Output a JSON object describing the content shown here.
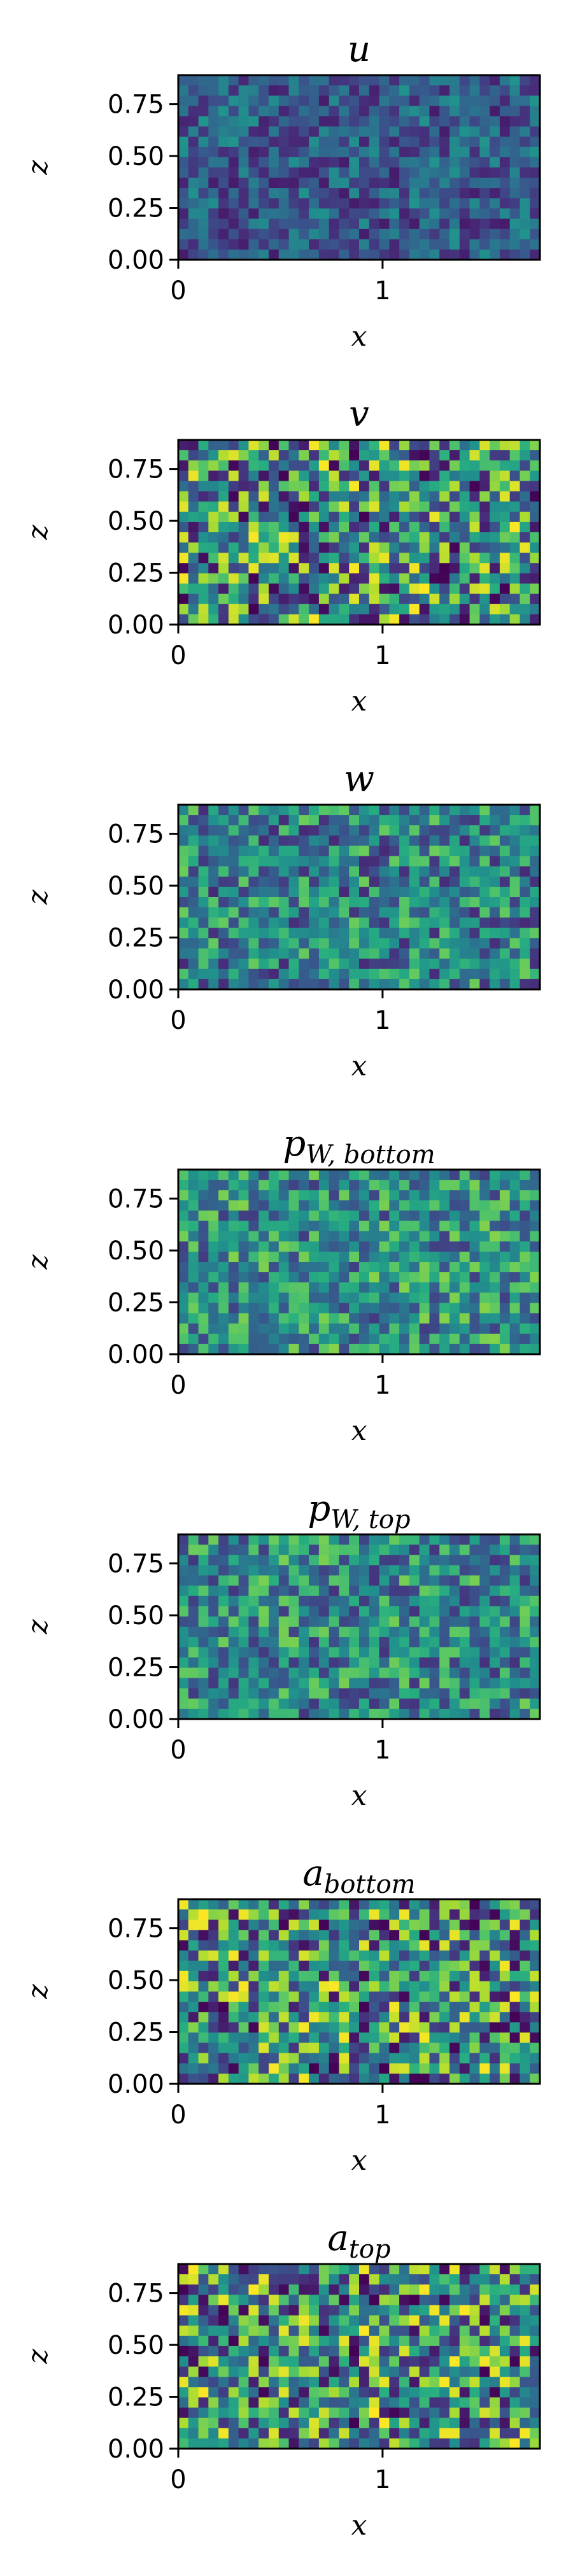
{
  "chart_data": [
    {
      "type": "heatmap",
      "title": "u",
      "xlabel": "x",
      "ylabel": "z",
      "x_ticks": [
        "0",
        "1"
      ],
      "y_ticks": [
        "0.00",
        "0.25",
        "0.50",
        "0.75"
      ],
      "xlim": [
        0,
        1.77
      ],
      "ylim": [
        0,
        0.89
      ],
      "grid_cols": 36,
      "grid_rows": 18,
      "colormap": "viridis",
      "seed": 11,
      "value_range": [
        0.08,
        0.52
      ]
    },
    {
      "type": "heatmap",
      "title": "v",
      "xlabel": "x",
      "ylabel": "z",
      "x_ticks": [
        "0",
        "1"
      ],
      "y_ticks": [
        "0.00",
        "0.25",
        "0.50",
        "0.75"
      ],
      "xlim": [
        0,
        1.77
      ],
      "ylim": [
        0,
        0.89
      ],
      "grid_cols": 36,
      "grid_rows": 18,
      "colormap": "viridis",
      "seed": 23,
      "value_range": [
        0.0,
        1.0
      ]
    },
    {
      "type": "heatmap",
      "title": "w",
      "xlabel": "x",
      "ylabel": "z",
      "x_ticks": [
        "0",
        "1"
      ],
      "y_ticks": [
        "0.00",
        "0.25",
        "0.50",
        "0.75"
      ],
      "xlim": [
        0,
        1.77
      ],
      "ylim": [
        0,
        0.89
      ],
      "grid_cols": 36,
      "grid_rows": 18,
      "colormap": "viridis",
      "seed": 37,
      "value_range": [
        0.12,
        0.78
      ]
    },
    {
      "type": "heatmap",
      "title": "p",
      "title_sub": "W, bottom",
      "xlabel": "x",
      "ylabel": "z",
      "x_ticks": [
        "0",
        "1"
      ],
      "y_ticks": [
        "0.00",
        "0.25",
        "0.50",
        "0.75"
      ],
      "xlim": [
        0,
        1.77
      ],
      "ylim": [
        0,
        0.89
      ],
      "grid_cols": 36,
      "grid_rows": 18,
      "colormap": "viridis",
      "seed": 41,
      "value_range": [
        0.18,
        0.82
      ]
    },
    {
      "type": "heatmap",
      "title": "p",
      "title_sub": "W, top",
      "xlabel": "x",
      "ylabel": "z",
      "x_ticks": [
        "0",
        "1"
      ],
      "y_ticks": [
        "0.00",
        "0.25",
        "0.50",
        "0.75"
      ],
      "xlim": [
        0,
        1.77
      ],
      "ylim": [
        0,
        0.89
      ],
      "grid_cols": 36,
      "grid_rows": 18,
      "colormap": "viridis",
      "seed": 53,
      "value_range": [
        0.15,
        0.8
      ]
    },
    {
      "type": "heatmap",
      "title": "a",
      "title_sub": "bottom",
      "xlabel": "x",
      "ylabel": "z",
      "x_ticks": [
        "0",
        "1"
      ],
      "y_ticks": [
        "0.00",
        "0.25",
        "0.50",
        "0.75"
      ],
      "xlim": [
        0,
        1.77
      ],
      "ylim": [
        0,
        0.89
      ],
      "grid_cols": 36,
      "grid_rows": 18,
      "colormap": "viridis",
      "seed": 67,
      "value_range": [
        0.0,
        1.0
      ]
    },
    {
      "type": "heatmap",
      "title": "a",
      "title_sub": "top",
      "xlabel": "x",
      "ylabel": "z",
      "x_ticks": [
        "0",
        "1"
      ],
      "y_ticks": [
        "0.00",
        "0.25",
        "0.50",
        "0.75"
      ],
      "xlim": [
        0,
        1.77
      ],
      "ylim": [
        0,
        0.89
      ],
      "grid_cols": 36,
      "grid_rows": 18,
      "colormap": "viridis",
      "seed": 79,
      "value_range": [
        0.0,
        1.0
      ]
    }
  ]
}
